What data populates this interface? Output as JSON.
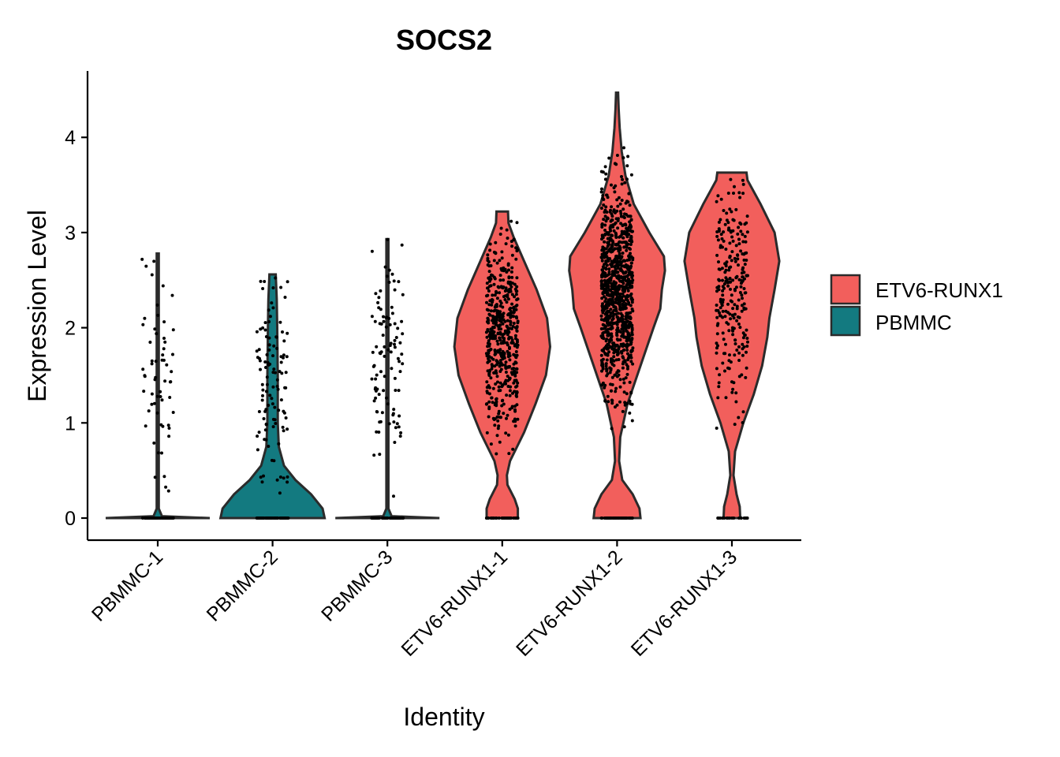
{
  "chart_data": {
    "type": "violin",
    "title": "SOCS2",
    "xlabel": "Identity",
    "ylabel": "Expression Level",
    "ylim": [
      -0.2,
      4.7
    ],
    "yticks": [
      0,
      1,
      2,
      3,
      4
    ],
    "grid": false,
    "legend_position": "right",
    "legend": [
      {
        "label": "ETV6-RUNX1",
        "color": "#F25F5C"
      },
      {
        "label": "PBMMC",
        "color": "#137A80"
      }
    ],
    "categories": [
      "PBMMC-1",
      "PBMMC-2",
      "PBMMC-3",
      "ETV6-RUNX1-1",
      "ETV6-RUNX1-2",
      "ETV6-RUNX1-3"
    ],
    "series": [
      {
        "name": "PBMMC-1",
        "group": "PBMMC",
        "color": "#137A80",
        "max": 2.78,
        "density": [
          [
            0,
            1.0
          ],
          [
            0.02,
            0.08
          ],
          [
            0.1,
            0.02
          ],
          [
            2.78,
            0.02
          ]
        ],
        "zero_count": 60,
        "nonzero_count": 60,
        "nonzero_mean": 1.5,
        "nonzero_sd": 0.55
      },
      {
        "name": "PBMMC-2",
        "group": "PBMMC",
        "color": "#137A80",
        "max": 2.56,
        "density": [
          [
            0,
            1.0
          ],
          [
            0.1,
            0.96
          ],
          [
            0.25,
            0.74
          ],
          [
            0.4,
            0.44
          ],
          [
            0.55,
            0.22
          ],
          [
            0.75,
            0.12
          ],
          [
            1.0,
            0.1
          ],
          [
            1.5,
            0.1
          ],
          [
            2.0,
            0.09
          ],
          [
            2.3,
            0.08
          ],
          [
            2.5,
            0.065
          ],
          [
            2.56,
            0.06
          ]
        ],
        "zero_count": 80,
        "nonzero_count": 110,
        "nonzero_mean": 1.45,
        "nonzero_sd": 0.55
      },
      {
        "name": "PBMMC-3",
        "group": "PBMMC",
        "color": "#137A80",
        "max": 2.93,
        "density": [
          [
            0,
            1.0
          ],
          [
            0.02,
            0.08
          ],
          [
            0.1,
            0.02
          ],
          [
            2.93,
            0.02
          ]
        ],
        "zero_count": 60,
        "nonzero_count": 100,
        "nonzero_mean": 1.7,
        "nonzero_sd": 0.55
      },
      {
        "name": "ETV6-RUNX1-1",
        "group": "ETV6-RUNX1",
        "color": "#F25F5C",
        "max": 3.22,
        "density": [
          [
            0,
            0.3
          ],
          [
            0.1,
            0.3
          ],
          [
            0.2,
            0.24
          ],
          [
            0.35,
            0.1
          ],
          [
            0.45,
            0.09
          ],
          [
            0.6,
            0.15
          ],
          [
            0.9,
            0.42
          ],
          [
            1.2,
            0.64
          ],
          [
            1.5,
            0.84
          ],
          [
            1.8,
            0.92
          ],
          [
            2.1,
            0.86
          ],
          [
            2.4,
            0.66
          ],
          [
            2.7,
            0.42
          ],
          [
            2.95,
            0.22
          ],
          [
            3.1,
            0.12
          ],
          [
            3.22,
            0.11
          ]
        ],
        "zero_count": 40,
        "nonzero_count": 520,
        "nonzero_mean": 1.9,
        "nonzero_sd": 0.5
      },
      {
        "name": "ETV6-RUNX1-2",
        "group": "ETV6-RUNX1",
        "color": "#F25F5C",
        "max": 4.47,
        "density": [
          [
            0,
            0.45
          ],
          [
            0.1,
            0.43
          ],
          [
            0.25,
            0.3
          ],
          [
            0.4,
            0.1
          ],
          [
            0.6,
            0.04
          ],
          [
            0.85,
            0.06
          ],
          [
            1.2,
            0.2
          ],
          [
            1.6,
            0.45
          ],
          [
            2.0,
            0.7
          ],
          [
            2.2,
            0.83
          ],
          [
            2.4,
            0.86
          ],
          [
            2.6,
            0.92
          ],
          [
            2.75,
            0.9
          ],
          [
            3.0,
            0.62
          ],
          [
            3.3,
            0.32
          ],
          [
            3.6,
            0.16
          ],
          [
            3.85,
            0.09
          ],
          [
            4.1,
            0.05
          ],
          [
            4.3,
            0.03
          ],
          [
            4.47,
            0.02
          ]
        ],
        "zero_count": 60,
        "nonzero_count": 950,
        "nonzero_mean": 2.4,
        "nonzero_sd": 0.55
      },
      {
        "name": "ETV6-RUNX1-3",
        "group": "ETV6-RUNX1",
        "color": "#F25F5C",
        "max": 3.63,
        "density": [
          [
            0,
            0.16
          ],
          [
            0.12,
            0.15
          ],
          [
            0.25,
            0.09
          ],
          [
            0.45,
            0.03
          ],
          [
            0.7,
            0.06
          ],
          [
            1.0,
            0.22
          ],
          [
            1.3,
            0.42
          ],
          [
            1.6,
            0.58
          ],
          [
            1.9,
            0.68
          ],
          [
            2.1,
            0.72
          ],
          [
            2.4,
            0.82
          ],
          [
            2.7,
            0.91
          ],
          [
            3.0,
            0.82
          ],
          [
            3.3,
            0.55
          ],
          [
            3.55,
            0.3
          ],
          [
            3.63,
            0.28
          ]
        ],
        "zero_count": 20,
        "nonzero_count": 260,
        "nonzero_mean": 2.4,
        "nonzero_sd": 0.55
      }
    ]
  }
}
